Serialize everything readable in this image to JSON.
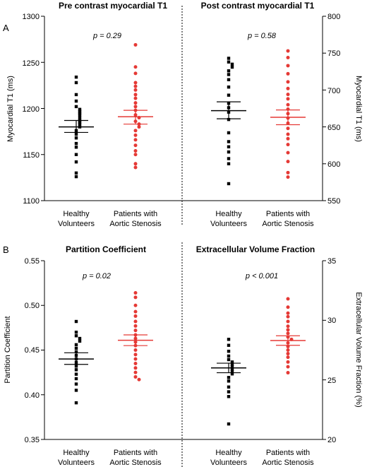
{
  "colors": {
    "healthy": "#000000",
    "patients": "#e53935"
  },
  "chart_data": [
    {
      "panel_label": "A",
      "left": {
        "title": "Pre contrast myocardial T1",
        "ylabel": "Myocardial T1 (ms)",
        "ylim": [
          1100,
          1300
        ],
        "yticks": [
          1100,
          1150,
          1200,
          1250,
          1300
        ],
        "pvalue": "p = 0.29",
        "groups": [
          {
            "label": [
              "Healthy",
              "Volunteers"
            ],
            "color_key": "healthy",
            "mean": 1180,
            "sem_low": 1174,
            "sem_high": 1187,
            "points": [
              1234,
              1228,
              1215,
              1208,
              1202,
              1199,
              1197,
              1195,
              1193,
              1190,
              1187,
              1185,
              1183,
              1180,
              1176,
              1172,
              1168,
              1162,
              1158,
              1150,
              1142,
              1130,
              1126
            ]
          },
          {
            "label": [
              "Patients with",
              "Aortic Stenosis"
            ],
            "color_key": "patients",
            "mean": 1191,
            "sem_low": 1183,
            "sem_high": 1198,
            "points": [
              1269,
              1245,
              1238,
              1228,
              1224,
              1220,
              1215,
              1211,
              1206,
              1202,
              1198,
              1193,
              1190,
              1186,
              1183,
              1180,
              1176,
              1171,
              1166,
              1160,
              1154,
              1150,
              1140,
              1136
            ]
          }
        ]
      },
      "right": {
        "title": "Post contrast myocardial T1",
        "ylabel": "Myocardial T1 (ms)",
        "ylim": [
          550,
          800
        ],
        "yticks": [
          550,
          600,
          650,
          700,
          750,
          800
        ],
        "pvalue": "p = 0.58",
        "groups": [
          {
            "label": [
              "Healthy",
              "Volunteers"
            ],
            "color_key": "healthy",
            "mean": 672,
            "sem_low": 661,
            "sem_high": 684,
            "points": [
              743,
              738,
              735,
              731,
              726,
              721,
              714,
              704,
              693,
              682,
              676,
              670,
              660,
              642,
              630,
              623,
              616,
              607,
              600,
              573
            ]
          },
          {
            "label": [
              "Patients with",
              "Aortic Stenosis"
            ],
            "color_key": "patients",
            "mean": 663,
            "sem_low": 653,
            "sem_high": 673,
            "points": [
              753,
              744,
              733,
              722,
              711,
              702,
              694,
              688,
              680,
              674,
              668,
              662,
              655,
              648,
              640,
              634,
              626,
              615,
              603,
              588,
              582
            ]
          }
        ]
      }
    },
    {
      "panel_label": "B",
      "left": {
        "title": "Partition Coefficient",
        "ylabel": "Partition Coefficient",
        "ylim": [
          0.35,
          0.55
        ],
        "yticks": [
          "0.35",
          "0.40",
          "0.45",
          "0.50",
          "0.55"
        ],
        "pvalue": "p = 0.02",
        "groups": [
          {
            "label": [
              "Healthy",
              "Volunteers"
            ],
            "color_key": "healthy",
            "mean": 0.44,
            "sem_low": 0.434,
            "sem_high": 0.447,
            "points": [
              0.482,
              0.47,
              0.466,
              0.463,
              0.46,
              0.456,
              0.452,
              0.448,
              0.444,
              0.44,
              0.436,
              0.432,
              0.428,
              0.423,
              0.418,
              0.412,
              0.405,
              0.391
            ]
          },
          {
            "label": [
              "Patients with",
              "Aortic Stenosis"
            ],
            "color_key": "patients",
            "mean": 0.461,
            "sem_low": 0.455,
            "sem_high": 0.467,
            "points": [
              0.514,
              0.509,
              0.5,
              0.493,
              0.488,
              0.482,
              0.477,
              0.472,
              0.467,
              0.463,
              0.459,
              0.455,
              0.45,
              0.445,
              0.44,
              0.435,
              0.43,
              0.425,
              0.42,
              0.417
            ]
          }
        ]
      },
      "right": {
        "title": "Extracellular Volume Fraction",
        "ylabel": "Extracellular Volume Fraction (%)",
        "ylim": [
          20,
          35
        ],
        "yticks": [
          20,
          25,
          30,
          35
        ],
        "pvalue": "p < 0.001",
        "groups": [
          {
            "label": [
              "Healthy",
              "Volunteers"
            ],
            "color_key": "healthy",
            "mean": 26.0,
            "sem_low": 25.6,
            "sem_high": 26.4,
            "points": [
              28.4,
              27.9,
              27.4,
              27.0,
              26.7,
              26.5,
              26.3,
              26.1,
              25.9,
              25.7,
              25.5,
              25.2,
              24.9,
              24.4,
              24.0,
              23.6,
              21.3
            ]
          },
          {
            "label": [
              "Patients with",
              "Aortic Stenosis"
            ],
            "color_key": "patients",
            "mean": 28.3,
            "sem_low": 27.9,
            "sem_high": 28.7,
            "points": [
              31.8,
              31.1,
              30.6,
              30.3,
              29.9,
              29.5,
              29.2,
              28.9,
              28.6,
              28.4,
              28.1,
              27.8,
              27.5,
              27.2,
              26.9,
              26.5,
              26.1,
              25.6
            ]
          }
        ]
      }
    }
  ]
}
